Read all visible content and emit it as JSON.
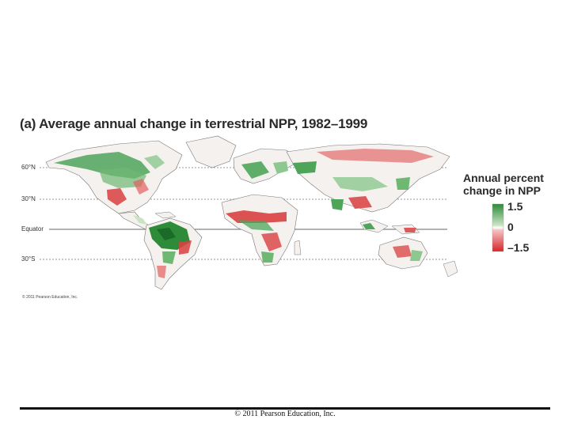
{
  "map": {
    "title": "(a) Average annual change in terrestrial NPP, 1982–1999",
    "latitude_lines": [
      {
        "label": "60°N",
        "lat": 60,
        "style": "dashed"
      },
      {
        "label": "30°N",
        "lat": 30,
        "style": "dashed"
      },
      {
        "label": "Equator",
        "lat": 0,
        "style": "solid"
      },
      {
        "label": "30°S",
        "lat": -30,
        "style": "dashed"
      }
    ],
    "legend": {
      "title_line1": "Annual percent",
      "title_line2": "change in NPP",
      "max_label": "1.5",
      "mid_label": "0",
      "min_label": "–1.5",
      "colors": {
        "high": "#2e8b3a",
        "mid": "#ffffff",
        "low": "#d7262b"
      }
    },
    "land_color": "#f4f1ee",
    "credit": "© 2011 Pearson Education, Inc."
  },
  "footer": {
    "text": "© 2011 Pearson Education, Inc."
  }
}
